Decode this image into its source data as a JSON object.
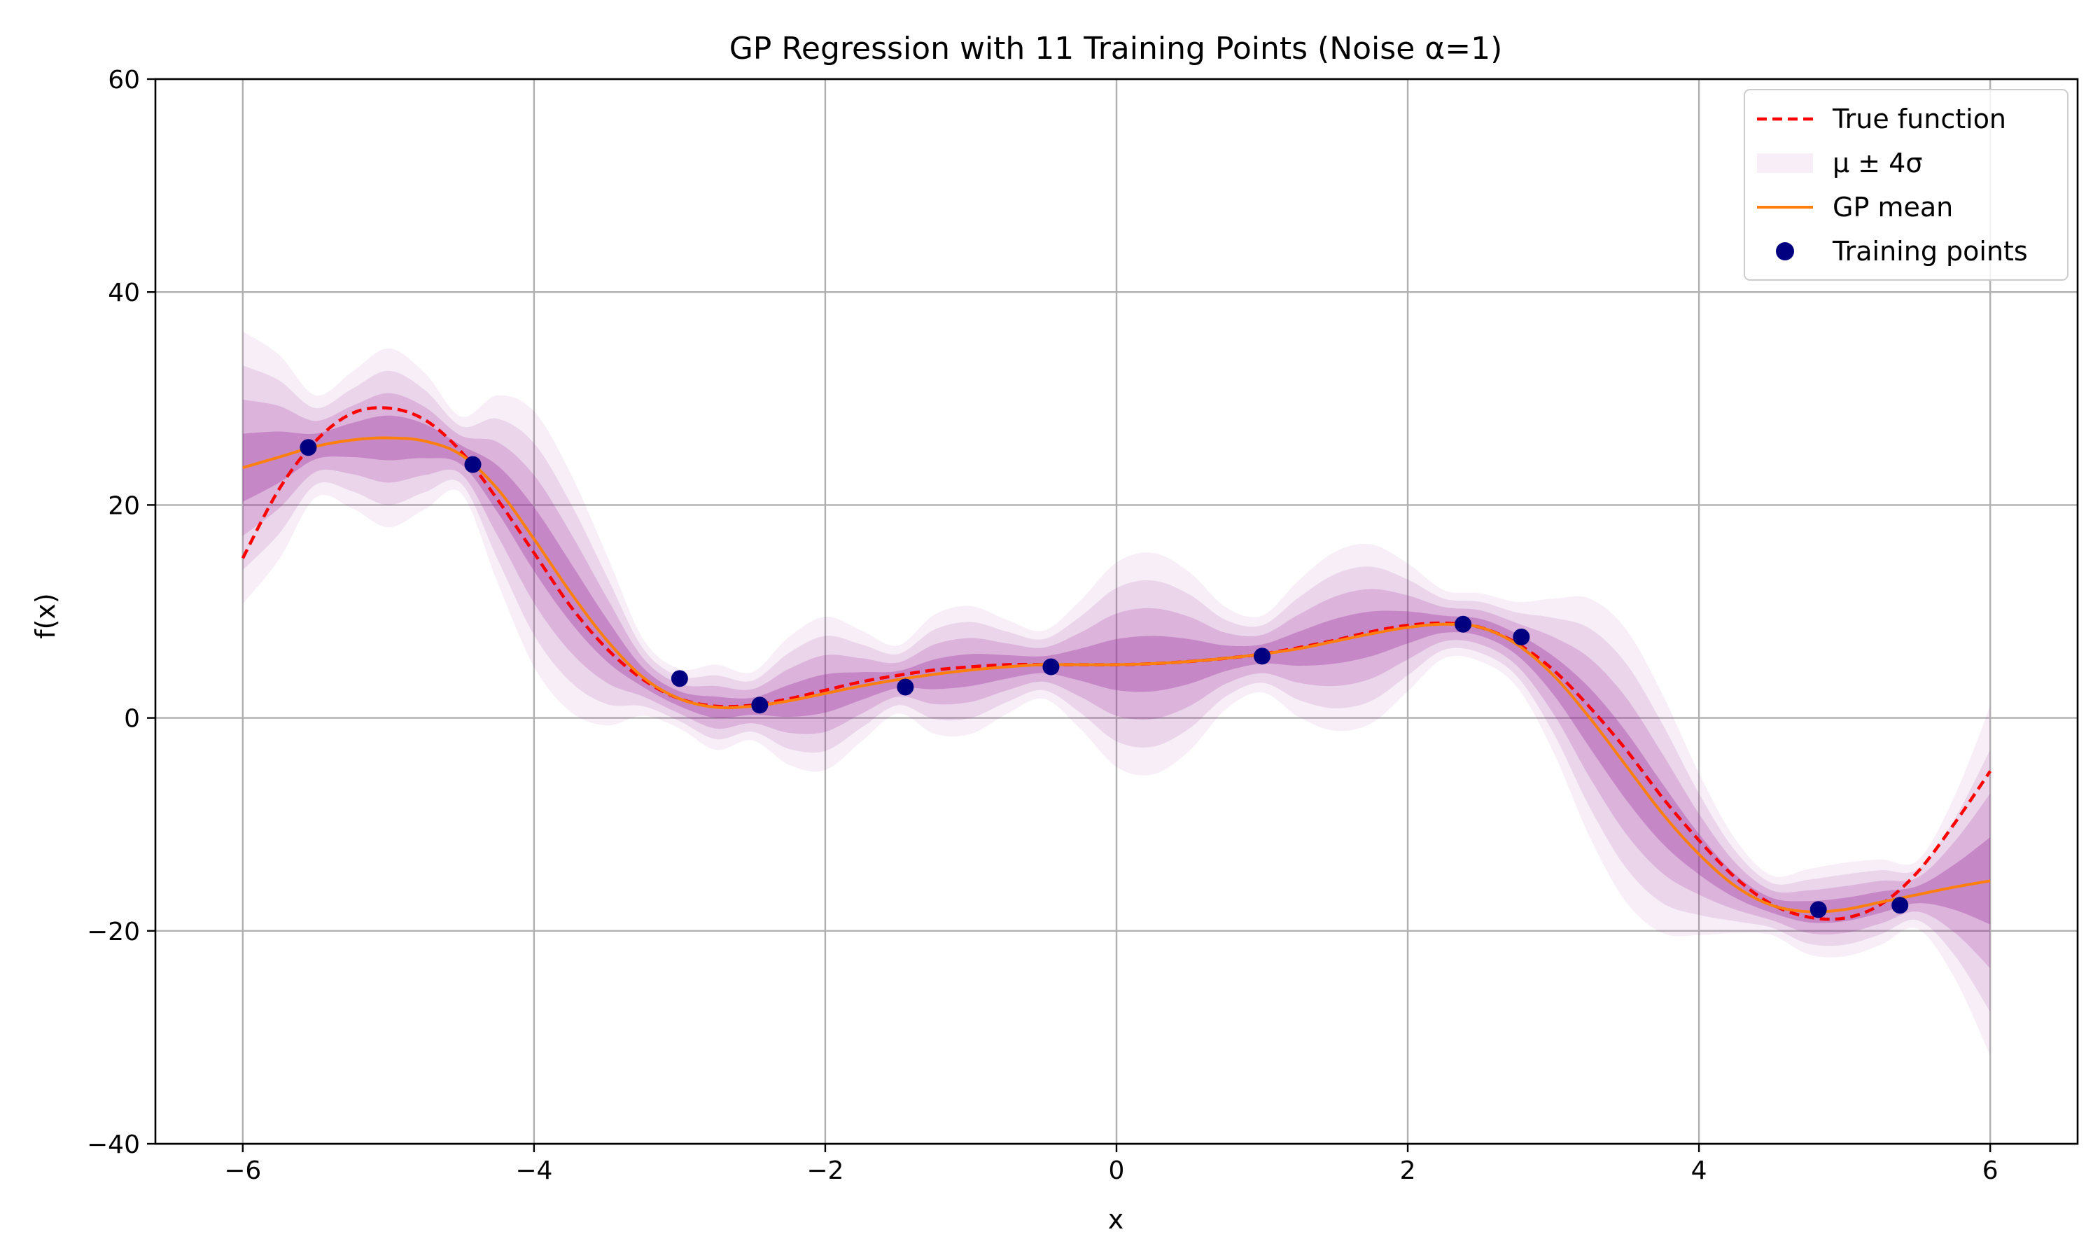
{
  "chart_data": {
    "type": "line",
    "title": "GP Regression with 11 Training Points (Noise α=1)",
    "xlabel": "x",
    "ylabel": "f(x)",
    "xlim": [
      -6.6,
      6.6
    ],
    "ylim": [
      -40,
      60
    ],
    "xticks": [
      -6,
      -4,
      -2,
      0,
      2,
      4,
      6
    ],
    "yticks": [
      -40,
      -20,
      0,
      20,
      40,
      60
    ],
    "xtick_labels": [
      "−6",
      "−4",
      "−2",
      "0",
      "2",
      "4",
      "6"
    ],
    "ytick_labels": [
      "−40",
      "−20",
      "0",
      "20",
      "40",
      "60"
    ],
    "grid": true,
    "legend_position": "top-right",
    "x": [
      -6.0,
      -5.75,
      -5.5,
      -5.25,
      -5.0,
      -4.75,
      -4.5,
      -4.25,
      -4.0,
      -3.75,
      -3.5,
      -3.25,
      -3.0,
      -2.75,
      -2.5,
      -2.25,
      -2.0,
      -1.75,
      -1.5,
      -1.25,
      -1.0,
      -0.75,
      -0.5,
      -0.25,
      0.0,
      0.25,
      0.5,
      0.75,
      1.0,
      1.25,
      1.5,
      1.75,
      2.0,
      2.25,
      2.5,
      2.75,
      3.0,
      3.25,
      3.5,
      3.75,
      4.0,
      4.25,
      4.5,
      4.75,
      5.0,
      5.25,
      5.5,
      5.75,
      6.0
    ],
    "series": [
      {
        "name": "True function",
        "style": "dashed",
        "color": "#ff0000",
        "values": [
          15.0,
          21.5,
          26.0,
          28.6,
          29.1,
          28.0,
          25.0,
          20.5,
          15.5,
          10.5,
          6.5,
          3.6,
          1.8,
          1.1,
          1.2,
          1.8,
          2.6,
          3.4,
          4.0,
          4.5,
          4.8,
          5.0,
          5.0,
          5.0,
          5.0,
          5.1,
          5.3,
          5.6,
          6.0,
          6.6,
          7.3,
          8.1,
          8.7,
          8.9,
          8.5,
          7.0,
          4.5,
          1.0,
          -3.0,
          -7.5,
          -11.5,
          -15.0,
          -17.5,
          -18.7,
          -18.8,
          -17.5,
          -14.5,
          -10.0,
          -5.0
        ]
      },
      {
        "name": "GP mean",
        "style": "solid",
        "color": "#ff7f0e",
        "values": [
          23.5,
          24.5,
          25.5,
          26.1,
          26.3,
          26.0,
          24.7,
          21.5,
          16.8,
          11.8,
          7.3,
          3.8,
          1.8,
          1.0,
          1.1,
          1.6,
          2.3,
          3.0,
          3.6,
          4.1,
          4.5,
          4.8,
          5.0,
          5.0,
          5.0,
          5.1,
          5.3,
          5.6,
          6.0,
          6.5,
          7.2,
          7.9,
          8.5,
          8.8,
          8.5,
          6.9,
          4.0,
          0.0,
          -4.5,
          -9.0,
          -12.8,
          -15.8,
          -17.6,
          -18.2,
          -18.0,
          -17.3,
          -16.6,
          -15.9,
          -15.3
        ]
      }
    ],
    "uncertainty": {
      "name": "μ ± 4σ",
      "color": "#9b2c9c",
      "sigma": [
        3.2,
        2.4,
        1.2,
        1.6,
        2.1,
        1.6,
        0.9,
        2.2,
        3.0,
        2.8,
        2.0,
        0.9,
        0.7,
        1.0,
        0.8,
        1.5,
        1.8,
        1.3,
        0.8,
        1.4,
        1.5,
        1.1,
        0.8,
        1.5,
        2.4,
        2.6,
        2.1,
        1.2,
        0.9,
        1.6,
        2.1,
        2.1,
        1.5,
        0.8,
        0.8,
        1.0,
        1.8,
        2.8,
        3.2,
        2.8,
        1.9,
        1.1,
        0.7,
        1.0,
        1.1,
        1.0,
        0.8,
        2.1,
        4.1
      ],
      "bands": [
        {
          "k": 1,
          "opacity": 0.32
        },
        {
          "k": 2,
          "opacity": 0.2
        },
        {
          "k": 3,
          "opacity": 0.13
        },
        {
          "k": 4,
          "opacity": 0.08
        }
      ]
    },
    "training_points": {
      "name": "Training points",
      "color": "#000080",
      "x": [
        -5.55,
        -4.42,
        -3.0,
        -2.45,
        -1.45,
        -0.45,
        1.0,
        2.38,
        2.78,
        4.82,
        5.38
      ],
      "y": [
        25.4,
        23.8,
        3.7,
        1.2,
        2.9,
        4.8,
        5.8,
        8.8,
        7.6,
        -18.0,
        -17.6
      ]
    },
    "legend": [
      {
        "label": "True function",
        "kind": "dashed-line",
        "color": "#ff0000"
      },
      {
        "label": "μ ± 4σ",
        "kind": "patch",
        "color": "#9b2c9c"
      },
      {
        "label": "GP mean",
        "kind": "line",
        "color": "#ff7f0e"
      },
      {
        "label": "Training points",
        "kind": "marker",
        "color": "#000080"
      }
    ]
  }
}
